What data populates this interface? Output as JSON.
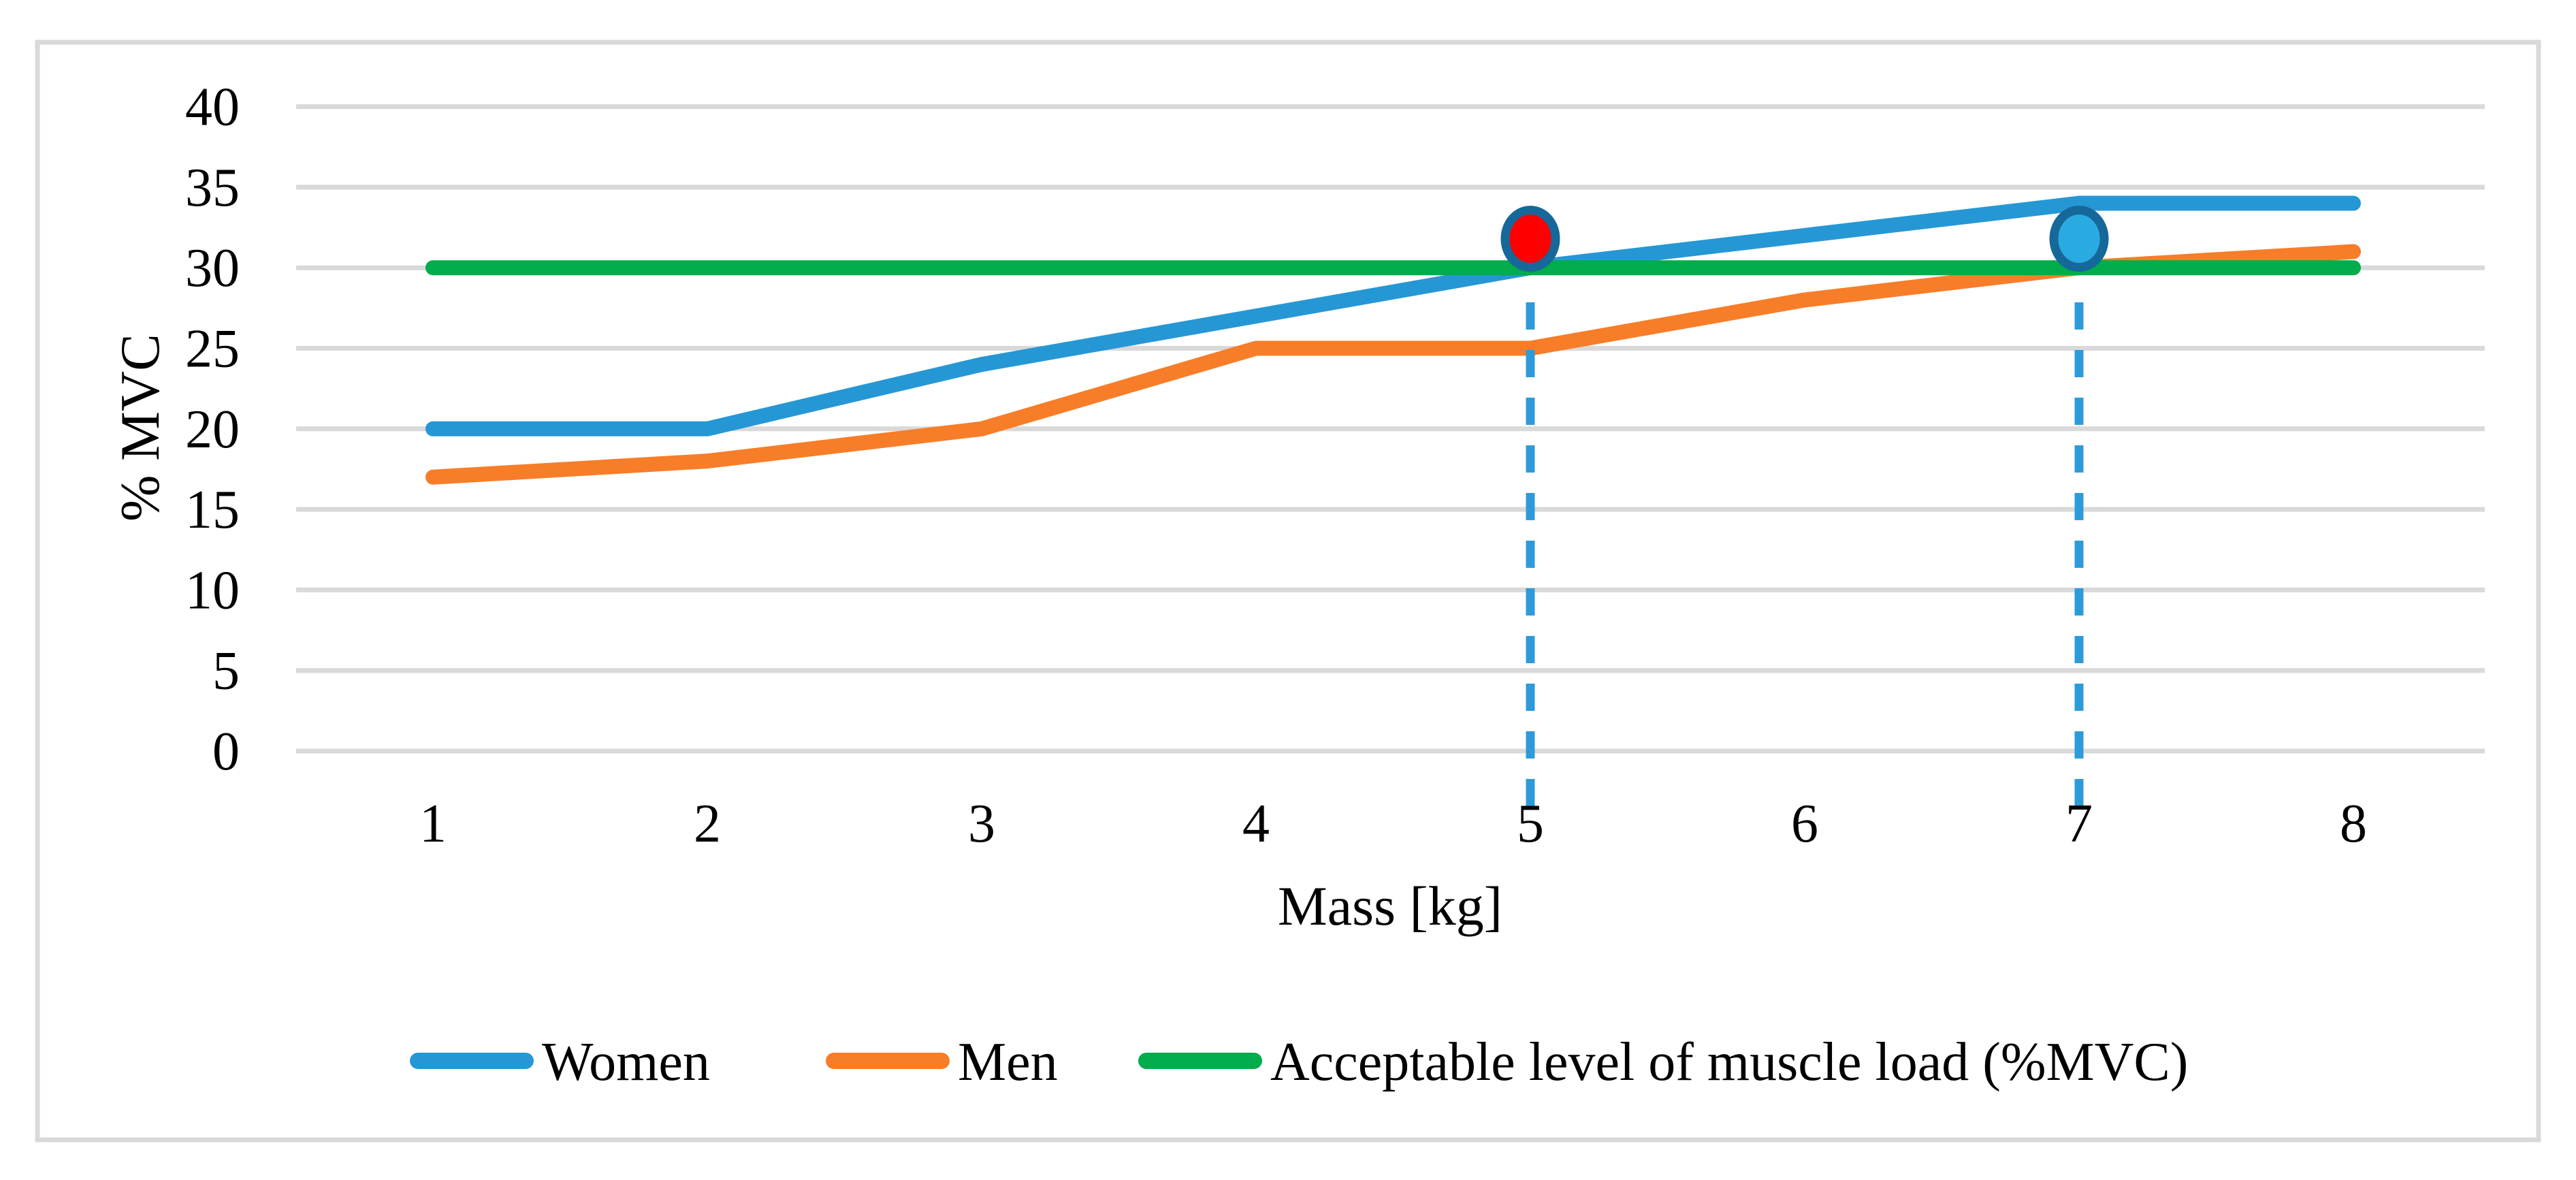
{
  "figure": {
    "background": "#FFFFFF",
    "border_color": "#D9D9D9",
    "gridline_color": "#D9D9D9",
    "text_color": "#000000"
  },
  "chart_data": {
    "type": "line",
    "title": "",
    "xlabel": "Mass [kg]",
    "ylabel": "% MVC",
    "x": [
      1,
      2,
      3,
      4,
      5,
      6,
      7,
      8
    ],
    "yticks": [
      0,
      5,
      10,
      15,
      20,
      25,
      30,
      35,
      40
    ],
    "ylim": [
      0,
      40
    ],
    "grid": "horizontal-only",
    "legend_position": "bottom",
    "series": [
      {
        "name": "Women",
        "values": [
          20,
          20,
          24,
          27,
          30,
          32,
          34,
          34
        ],
        "color": "#2697D5"
      },
      {
        "name": "Men",
        "values": [
          17,
          18,
          20,
          25,
          25,
          28,
          30,
          31
        ],
        "color": "#F87D28"
      },
      {
        "name": "Acceptable level of muscle load (%MVC)",
        "values": [
          30,
          30,
          30,
          30,
          30,
          30,
          30,
          30
        ],
        "color": "#00AC4B"
      }
    ],
    "annotations": {
      "markers": [
        {
          "x": 5,
          "y": 31.8,
          "fill": "#FF0000",
          "ring": "#16689A",
          "meaning": "women-curve-reaches-acceptable-level"
        },
        {
          "x": 7,
          "y": 31.8,
          "fill": "#29ABE2",
          "ring": "#16689A",
          "meaning": "men-curve-reaches-acceptable-level"
        }
      ],
      "droplines": {
        "x_values": [
          5,
          7
        ],
        "color": "#2E9BD9",
        "style": "dashed"
      }
    }
  }
}
